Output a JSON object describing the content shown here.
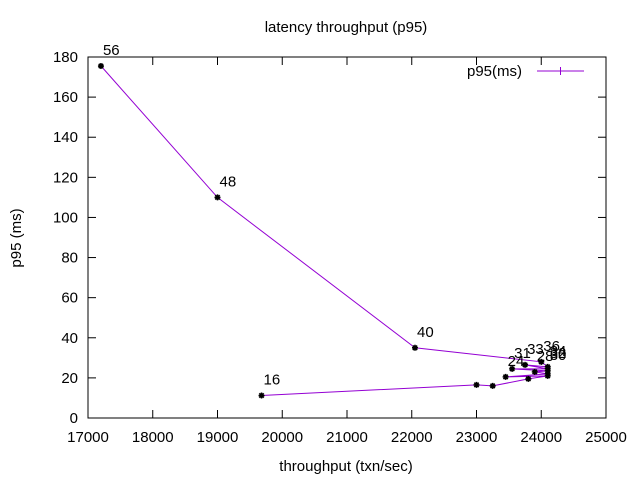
{
  "chart_data": {
    "type": "line",
    "title": "latency throughput (p95)",
    "xlabel": "throughput (txn/sec)",
    "ylabel": "p95 (ms)",
    "xlim": [
      17000,
      25000
    ],
    "ylim": [
      0,
      180
    ],
    "x_ticks": [
      "17000",
      "18000",
      "19000",
      "20000",
      "21000",
      "22000",
      "23000",
      "24000",
      "25000"
    ],
    "y_ticks": [
      "0",
      "20",
      "40",
      "60",
      "80",
      "100",
      "120",
      "140",
      "160",
      "180"
    ],
    "grid": false,
    "legend_position": "top-right",
    "series": [
      {
        "name": "p95(ms)",
        "color": "#9400d3",
        "marker_color": "#000000",
        "points": [
          {
            "x": 19680,
            "y": 11.2,
            "label": "16"
          },
          {
            "x": 23000,
            "y": 16.5,
            "label": ""
          },
          {
            "x": 23250,
            "y": 16.0,
            "label": ""
          },
          {
            "x": 23800,
            "y": 19.5,
            "label": ""
          },
          {
            "x": 24100,
            "y": 21.0,
            "label": ""
          },
          {
            "x": 23450,
            "y": 20.5,
            "label": "24"
          },
          {
            "x": 24100,
            "y": 22.0,
            "label": ""
          },
          {
            "x": 23900,
            "y": 23.0,
            "label": "28"
          },
          {
            "x": 24100,
            "y": 23.5,
            "label": "30"
          },
          {
            "x": 23550,
            "y": 24.5,
            "label": "31"
          },
          {
            "x": 24100,
            "y": 24.5,
            "label": "32"
          },
          {
            "x": 23750,
            "y": 26.5,
            "label": "33"
          },
          {
            "x": 24100,
            "y": 25.5,
            "label": "34"
          },
          {
            "x": 24000,
            "y": 28.0,
            "label": "36"
          },
          {
            "x": 22050,
            "y": 35.0,
            "label": "40"
          },
          {
            "x": 19000,
            "y": 110.0,
            "label": "48"
          },
          {
            "x": 17200,
            "y": 175.5,
            "label": "56"
          }
        ]
      }
    ]
  }
}
